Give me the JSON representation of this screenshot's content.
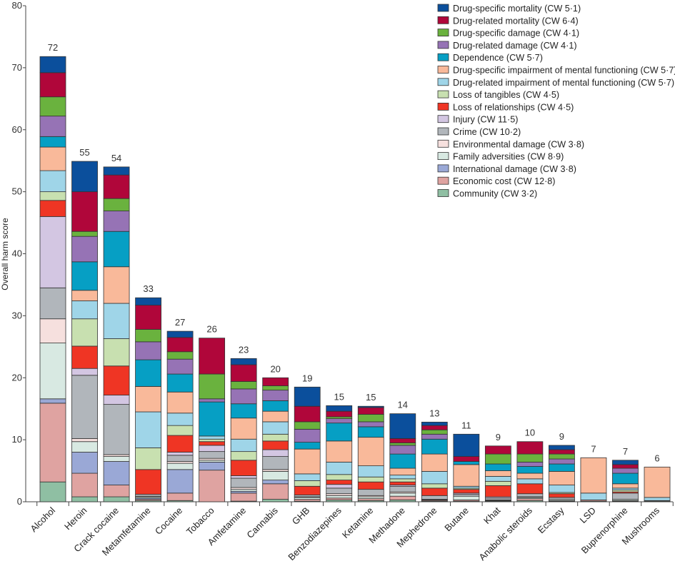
{
  "chart_data": {
    "type": "bar",
    "stacked": true,
    "title": "",
    "xlabel": "",
    "ylabel": "Overall harm score",
    "ylim": [
      0,
      80
    ],
    "yticks": [
      0,
      10,
      20,
      30,
      40,
      50,
      60,
      70,
      80
    ],
    "grid": false,
    "legend_position": "top-right",
    "categories": [
      "Alcohol",
      "Heroin",
      "Crack cocaine",
      "Metamfetamine",
      "Cocaine",
      "Tobacco",
      "Amfetamine",
      "Cannabis",
      "GHB",
      "Benzodiazepines",
      "Ketamine",
      "Methadone",
      "Mephedrone",
      "Butane",
      "Khat",
      "Anabolic steroids",
      "Ecstasy",
      "LSD",
      "Buprenorphine",
      "Mushrooms"
    ],
    "totals": [
      "72",
      "55",
      "54",
      "33",
      "27",
      "26",
      "23",
      "20",
      "19",
      "15",
      "15",
      "14",
      "13",
      "11",
      "9",
      "10",
      "9",
      "7",
      "7",
      "6"
    ],
    "series": [
      {
        "name": "Drug-specific mortality (CW 5·1)",
        "color": "#0b4f9c",
        "values": [
          2.6,
          4.9,
          1.3,
          1.2,
          1.0,
          0,
          1.0,
          0,
          3.1,
          0.9,
          0.2,
          4.0,
          0.55,
          3.6,
          0,
          0,
          0.7,
          0,
          0.7,
          0
        ]
      },
      {
        "name": "Drug-related mortality (CW 6·4)",
        "color": "#b0063a",
        "values": [
          3.9,
          6.4,
          3.8,
          3.9,
          2.3,
          5.8,
          2.7,
          1.3,
          2.5,
          0.9,
          1.1,
          0.7,
          0.7,
          0.8,
          1.3,
          2.0,
          0.7,
          0,
          0.6,
          0
        ]
      },
      {
        "name": "Drug-specific damage (CW 4·1)",
        "color": "#6ab23e",
        "values": [
          3.1,
          0.8,
          2.0,
          2.0,
          1.2,
          4.0,
          1.2,
          0.7,
          1.2,
          0.3,
          1.2,
          0.4,
          0.7,
          0,
          1.6,
          1.3,
          0.8,
          0,
          0,
          0
        ]
      },
      {
        "name": "Drug-related damage (CW 4·1)",
        "color": "#9673b5",
        "values": [
          3.3,
          4.1,
          3.3,
          2.9,
          2.4,
          0.5,
          2.4,
          1.7,
          2.1,
          0.7,
          0.8,
          1.4,
          0.8,
          0,
          0,
          0.7,
          0.8,
          0,
          0.8,
          0
        ]
      },
      {
        "name": "Dependence (CW 5·7)",
        "color": "#069fc4",
        "values": [
          1.7,
          4.6,
          5.7,
          4.3,
          2.9,
          5.5,
          2.3,
          1.7,
          1.1,
          2.9,
          1.7,
          2.3,
          2.4,
          0.5,
          1.1,
          1.1,
          1.2,
          0,
          1.7,
          0
        ]
      },
      {
        "name": "Drug-specific impairment of mental functioning (CW 5·7)",
        "color": "#f9b99a",
        "values": [
          3.8,
          1.7,
          5.9,
          4.1,
          3.4,
          0,
          3.4,
          1.7,
          4.0,
          3.4,
          4.6,
          1.1,
          2.8,
          3.5,
          0.9,
          0.9,
          2.2,
          5.7,
          0.7,
          4.9
        ]
      },
      {
        "name": "Drug-related impairment of mental functioning (CW 5·7)",
        "color": "#9fd5e8",
        "values": [
          3.4,
          2.9,
          5.7,
          5.8,
          2.0,
          0.5,
          2.0,
          2.0,
          1.1,
          2.0,
          1.8,
          0.6,
          2.0,
          0.3,
          0.8,
          0.8,
          1.2,
          1.1,
          0.3,
          0.5
        ]
      },
      {
        "name": "Loss of tangibles (CW 4·5)",
        "color": "#c8e0b0",
        "values": [
          1.4,
          4.4,
          4.4,
          3.5,
          1.6,
          0.4,
          1.4,
          1.1,
          0.9,
          0.9,
          0.8,
          0.5,
          0.7,
          0.2,
          0.7,
          0,
          0.2,
          0,
          0.3,
          0
        ]
      },
      {
        "name": "Loss of relationships (CW 4·5)",
        "color": "#ef3524",
        "values": [
          2.6,
          3.6,
          4.7,
          4.0,
          2.7,
          0.6,
          2.5,
          1.4,
          1.4,
          0.7,
          1.2,
          0.5,
          1.2,
          0.6,
          1.8,
          1.6,
          0.6,
          0,
          0.2,
          0
        ]
      },
      {
        "name": "Injury (CW 11·5)",
        "color": "#d3c6e2",
        "values": [
          11.5,
          1.1,
          1.5,
          0,
          0.5,
          1.0,
          0.4,
          1.1,
          0,
          0.6,
          0,
          0.2,
          0,
          0.2,
          0.2,
          0,
          0,
          0,
          0,
          0
        ]
      },
      {
        "name": "Crime (CW 10·2)",
        "color": "#b1b6bb",
        "values": [
          5.0,
          10.2,
          8.1,
          0.3,
          1.0,
          1.1,
          1.5,
          2.1,
          0.3,
          0.9,
          1.0,
          0.9,
          0.6,
          0.3,
          0.3,
          0.5,
          0.3,
          0,
          1.0,
          0
        ]
      },
      {
        "name": "Environmental damage (CW 3·8)",
        "color": "#f6e0de",
        "values": [
          3.9,
          0.5,
          0.3,
          0.1,
          0.3,
          0.3,
          0.3,
          0.3,
          0.1,
          0.3,
          0.2,
          0.2,
          0,
          0,
          0,
          0.1,
          0,
          0,
          0,
          0
        ]
      },
      {
        "name": "Family adversities (CW 8·9)",
        "color": "#d8e9e2",
        "values": [
          9.0,
          1.7,
          0.8,
          0.2,
          1.0,
          0.3,
          0.3,
          1.4,
          0.3,
          0.4,
          0.3,
          0.5,
          0.1,
          0.6,
          0.1,
          0.2,
          0.2,
          0,
          0.2,
          0
        ]
      },
      {
        "name": "International damage (CW 3·8)",
        "color": "#9aa8d6",
        "values": [
          0.7,
          3.4,
          3.8,
          0.2,
          3.8,
          1.3,
          0.3,
          0.6,
          0,
          0,
          0,
          0,
          0.05,
          0,
          0,
          0,
          0,
          0,
          0,
          0
        ]
      },
      {
        "name": "Economic cost (CW 12·8)",
        "color": "#dfa3a1",
        "values": [
          12.7,
          3.8,
          1.9,
          0.2,
          1.2,
          5.1,
          1.3,
          2.5,
          0.3,
          0.3,
          0.3,
          0.6,
          0.15,
          0.2,
          0.1,
          0.3,
          0.1,
          0.2,
          0.1,
          0.1
        ]
      },
      {
        "name": "Community (CW 3·2)",
        "color": "#8fbfa3",
        "values": [
          3.2,
          0.8,
          0.8,
          0.2,
          0.2,
          0,
          0.1,
          0.4,
          0.1,
          0.3,
          0.2,
          0.3,
          0.1,
          0.1,
          0.1,
          0.2,
          0.1,
          0.1,
          0.1,
          0.1
        ]
      }
    ]
  }
}
